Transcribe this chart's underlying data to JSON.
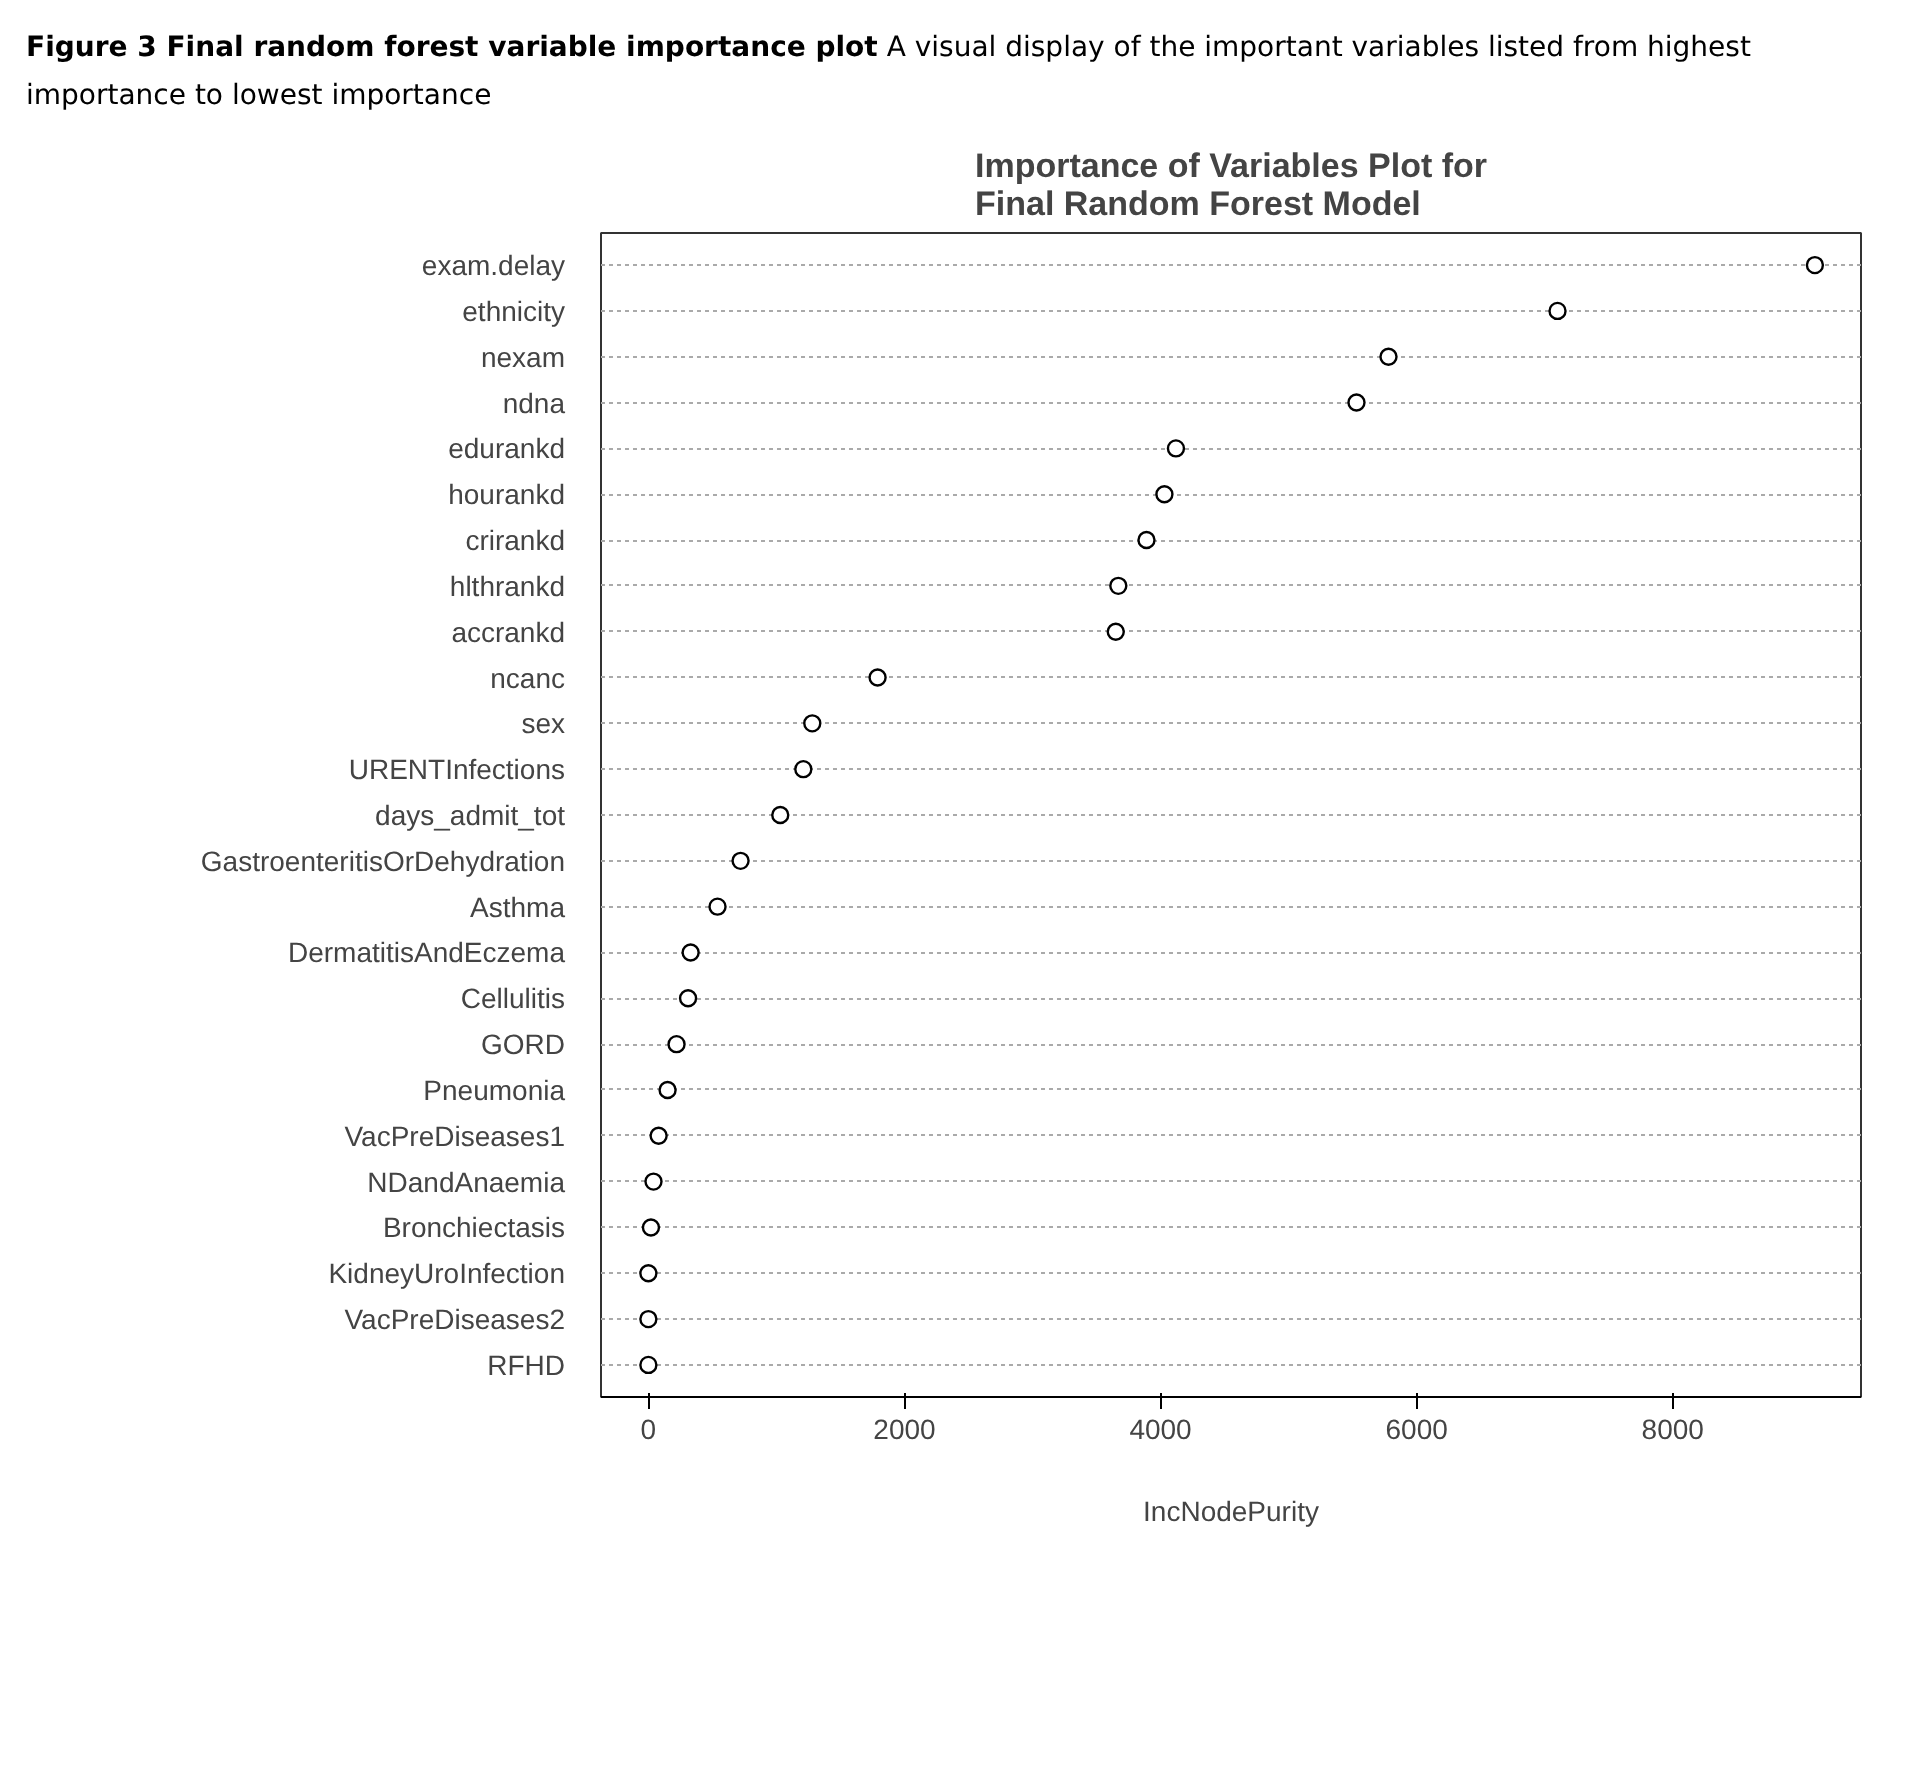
{
  "chart_data": {
    "type": "scatter",
    "title": "Importance of Variables Plot for\nFinal Random Forest Model",
    "xlabel": "IncNodePurity",
    "categories": [
      "exam.delay",
      "ethnicity",
      "nexam",
      "ndna",
      "edurankd",
      "hourankd",
      "crirankd",
      "hlthrankd",
      "accrankd",
      "ncanc",
      "sex",
      "URENTInfections",
      "days_admit_tot",
      "GastroenteritisOrDehydration",
      "Asthma",
      "DermatitisAndEczema",
      "Cellulitis",
      "GORD",
      "Pneumonia",
      "VacPreDiseases1",
      "NDandAnaemia",
      "Bronchiectasis",
      "KidneyUroInfection",
      "VacPreDiseases2",
      "RFHD"
    ],
    "values": [
      9110,
      7100,
      5780,
      5530,
      4120,
      4030,
      3890,
      3670,
      3650,
      1790,
      1280,
      1210,
      1030,
      720,
      540,
      330,
      310,
      220,
      150,
      80,
      40,
      20,
      0,
      0,
      0
    ],
    "color": "#000000",
    "marker": "circle",
    "orientation": "horizontal",
    "grid": "y",
    "xlim": [
      -370,
      9470
    ],
    "xticks": [
      0,
      2000,
      4000,
      6000,
      8000
    ],
    "annotations": [
      "Figure 3 Final random forest variable importance plot",
      "A visual display of the important variables listed from highest importance to lowest importance"
    ]
  }
}
